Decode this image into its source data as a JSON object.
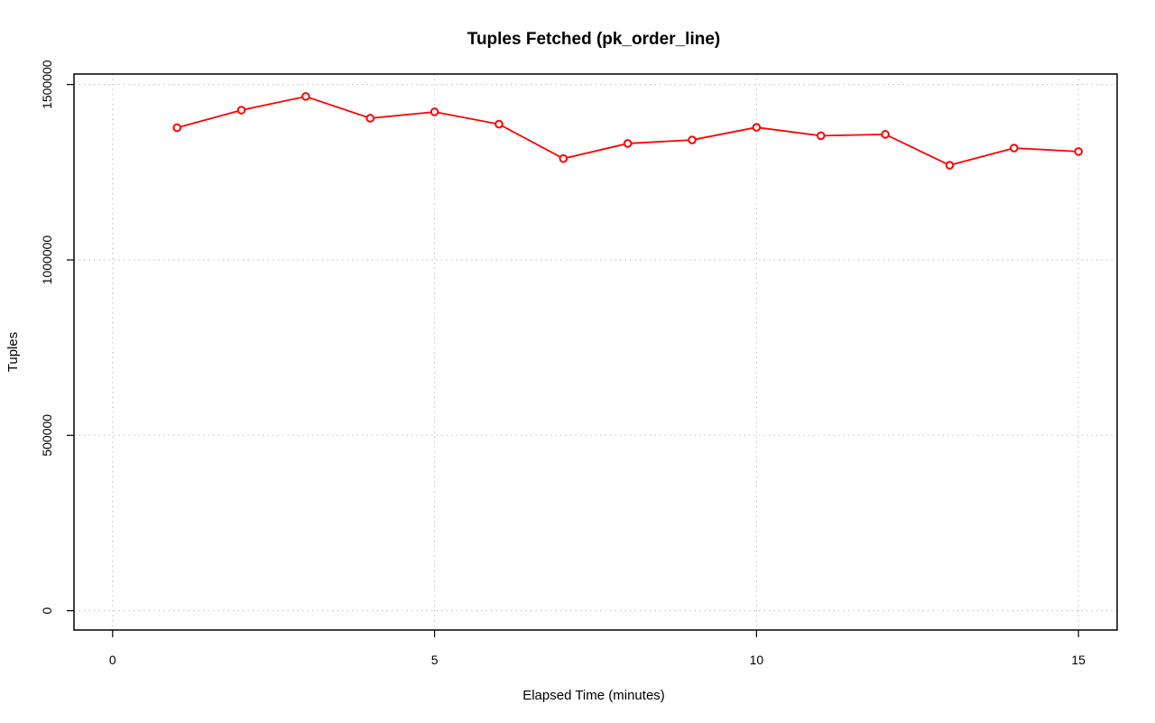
{
  "chart_data": {
    "type": "line",
    "title": "Tuples Fetched (pk_order_line)",
    "xlabel": "Elapsed Time (minutes)",
    "ylabel": "Tuples",
    "xlim": [
      -0.6,
      15.6
    ],
    "ylim": [
      -55000,
      1530000
    ],
    "x_ticks": [
      0,
      5,
      10,
      15
    ],
    "y_ticks": [
      0,
      500000,
      1000000,
      1500000
    ],
    "x_tick_labels": [
      "0",
      "5",
      "10",
      "15"
    ],
    "y_tick_labels": [
      "0",
      "500000",
      "1000000",
      "1500000"
    ],
    "grid": true,
    "series": [
      {
        "color": "#ff0000",
        "x": [
          1,
          2,
          3,
          4,
          5,
          6,
          7,
          8,
          9,
          10,
          11,
          12,
          13,
          14,
          15
        ],
        "y": [
          1377000,
          1427000,
          1466000,
          1404000,
          1422000,
          1387000,
          1289000,
          1332000,
          1342000,
          1378000,
          1354000,
          1358000,
          1270000,
          1319000,
          1309000
        ]
      }
    ]
  }
}
